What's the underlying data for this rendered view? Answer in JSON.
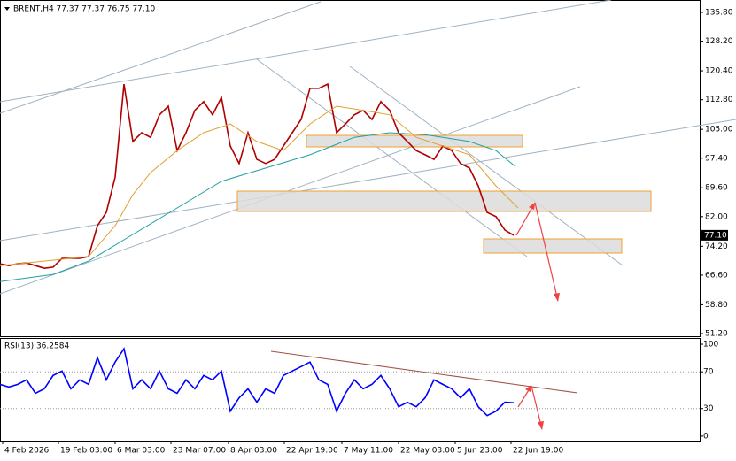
{
  "chart_data": [
    {
      "type": "line",
      "title": "BRENT,H4  77.37 77.37 76.75 77.10",
      "xlim": [
        0,
        79
      ],
      "ylim": [
        50.27,
        139.06
      ],
      "yticks": [
        {
          "value": 135.8,
          "label": "135.80"
        },
        {
          "value": 128.2,
          "label": "128.20"
        },
        {
          "value": 120.4,
          "label": "120.40"
        },
        {
          "value": 112.8,
          "label": "112.80"
        },
        {
          "value": 105,
          "label": "105.00"
        },
        {
          "value": 97.4,
          "label": "97.40"
        },
        {
          "value": 89.6,
          "label": "89.60"
        },
        {
          "value": 82,
          "label": "82.00"
        },
        {
          "value": 74.2,
          "label": "74.20"
        },
        {
          "value": 66.6,
          "label": "66.60"
        },
        {
          "value": 58.8,
          "label": "58.80"
        },
        {
          "value": 51.2,
          "label": "51.20"
        }
      ],
      "price_label": {
        "value": 77.1,
        "label": "77.10"
      },
      "series": [
        {
          "color": "#b00000",
          "x": [
            0,
            1,
            2,
            3,
            4,
            5,
            6,
            7,
            8,
            9,
            10,
            11,
            12,
            13,
            14,
            15,
            16,
            17,
            18,
            19,
            20,
            21,
            22,
            23,
            24,
            25,
            26,
            27,
            28,
            29,
            30,
            31,
            32,
            33,
            34,
            35,
            36,
            37,
            38,
            39,
            40,
            41,
            42,
            43,
            44,
            45,
            46,
            47,
            48,
            49,
            50,
            51,
            52,
            53,
            54,
            55,
            56,
            57,
            58
          ],
          "values": [
            69.6,
            69.1,
            69.6,
            69.8,
            69.1,
            68.4,
            68.7,
            71.0,
            71.0,
            71.0,
            71.5,
            79.6,
            83.1,
            92.4,
            116.9,
            101.8,
            104.1,
            102.9,
            108.8,
            111.1,
            99.4,
            104.1,
            110.0,
            112.3,
            108.8,
            113.4,
            100.6,
            96.0,
            104.1,
            97.1,
            96.0,
            97.1,
            100.6,
            104.1,
            107.6,
            115.8,
            115.8,
            116.9,
            104.1,
            106.4,
            108.8,
            110.0,
            107.6,
            112.3,
            110.0,
            104.1,
            101.8,
            99.4,
            98.3,
            97.1,
            100.6,
            99.4,
            96.0,
            94.8,
            90.1,
            83.1,
            82.0,
            78.5,
            77.1
          ]
        },
        {
          "color": "#e0a030",
          "x": [
            0,
            10,
            13,
            15,
            17,
            20,
            23,
            26,
            29,
            32,
            35,
            38,
            41,
            44,
            47,
            50,
            53,
            56,
            58.5
          ],
          "values": [
            69.1,
            71.5,
            79.6,
            87.8,
            93.6,
            99.4,
            104.1,
            106.4,
            101.8,
            99.4,
            106.4,
            111.1,
            110.0,
            108.8,
            102.9,
            100.6,
            98.3,
            90.1,
            84.3
          ]
        },
        {
          "color": "#20a0a0",
          "x": [
            0,
            6,
            10,
            15,
            20,
            25,
            30,
            35,
            40,
            44,
            48,
            53,
            56,
            58.2
          ],
          "values": [
            64.9,
            66.8,
            70.3,
            77.3,
            84.3,
            91.3,
            94.8,
            98.3,
            102.9,
            104.1,
            103.6,
            101.8,
            99.4,
            95.2
          ]
        }
      ]
    },
    {
      "type": "line",
      "title": "RSI(13) 36.2584",
      "xlim": [
        0,
        79
      ],
      "ylim": [
        -4.9,
        105.8
      ],
      "yticks": [
        0,
        30,
        70,
        100
      ],
      "xticks": [
        {
          "value": 0.3,
          "label": "4 Feb 2026"
        },
        {
          "value": 6.6,
          "label": "19 Feb 03:00"
        },
        {
          "value": 13,
          "label": "6 Mar 03:00"
        },
        {
          "value": 19.3,
          "label": "23 Mar 07:00"
        },
        {
          "value": 25.8,
          "label": "8 Apr 03:00"
        },
        {
          "value": 32.1,
          "label": "22 Apr 19:00"
        },
        {
          "value": 38.6,
          "label": "7 May 11:00"
        },
        {
          "value": 45,
          "label": "22 May 03:00"
        },
        {
          "value": 51.4,
          "label": "5 Jun 23:00"
        },
        {
          "value": 57.7,
          "label": "22 Jun 19:00"
        }
      ],
      "series": [
        {
          "color": "#0000ff",
          "x": [
            0,
            1,
            2,
            3,
            4,
            5,
            6,
            7,
            8,
            9,
            10,
            11,
            12,
            13,
            14,
            15,
            16,
            17,
            18,
            19,
            20,
            21,
            22,
            23,
            24,
            25,
            26,
            27,
            28,
            29,
            30,
            31,
            32,
            33,
            34,
            35,
            36,
            37,
            38,
            39,
            40,
            41,
            42,
            43,
            44,
            45,
            46,
            47,
            48,
            49,
            50,
            51,
            52,
            53,
            54,
            55,
            56,
            57,
            58
          ],
          "values": [
            56.3,
            53.4,
            56.3,
            61.2,
            46.6,
            51.5,
            66.0,
            70.9,
            51.5,
            61.2,
            56.3,
            85.4,
            61.2,
            80.6,
            95.1,
            51.5,
            61.2,
            51.5,
            70.9,
            51.5,
            46.6,
            61.2,
            51.5,
            66.0,
            61.2,
            70.9,
            27.2,
            41.7,
            51.5,
            36.9,
            51.5,
            46.6,
            66.0,
            70.9,
            75.7,
            80.6,
            61.2,
            56.3,
            27.2,
            46.6,
            61.2,
            51.5,
            56.3,
            66.0,
            51.5,
            32.0,
            36.9,
            32.0,
            41.7,
            61.2,
            56.3,
            51.5,
            41.7,
            51.5,
            32.0,
            22.3,
            27.2,
            36.9,
            36.3
          ]
        }
      ]
    }
  ]
}
